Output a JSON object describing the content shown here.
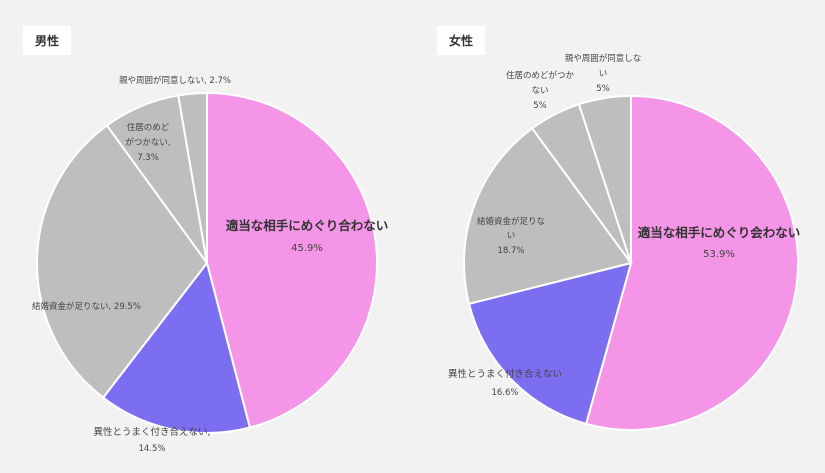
{
  "chart_data": [
    {
      "type": "pie",
      "title": "男性",
      "slices": [
        {
          "name": "適当な相手にめぐり合わない",
          "value": 45.9,
          "label_value": "45.9%",
          "color": "#f595e8"
        },
        {
          "name": "異性とうまく付き合えない",
          "value": 14.5,
          "label_value": "14.5%",
          "color": "#7b6ef0"
        },
        {
          "name": "結婚資金が足りない",
          "value": 29.5,
          "label_value": "29.5%",
          "color": "#bebebe"
        },
        {
          "name": "住居のめどがつかない",
          "value": 7.3,
          "label_value": "7.3%",
          "color": "#bebebe"
        },
        {
          "name": "親や周囲が同意しない",
          "value": 2.7,
          "label_value": "2.7%",
          "color": "#bebebe"
        }
      ]
    },
    {
      "type": "pie",
      "title": "女性",
      "slices": [
        {
          "name": "適当な相手にめぐり会わない",
          "value": 53.9,
          "label_value": "53.9%",
          "color": "#f595e8"
        },
        {
          "name": "異性とうまく付き合えない",
          "value": 16.6,
          "label_value": "16.6%",
          "color": "#7b6ef0"
        },
        {
          "name": "結婚資金が足りない",
          "value": 18.7,
          "label_value": "18.7%",
          "color": "#bebebe"
        },
        {
          "name": "住居のめどがつかない",
          "value": 5,
          "label_value": "5%",
          "color": "#bebebe"
        },
        {
          "name": "親や周囲が同意しない",
          "value": 5,
          "label_value": "5%",
          "color": "#bebebe"
        }
      ]
    }
  ]
}
